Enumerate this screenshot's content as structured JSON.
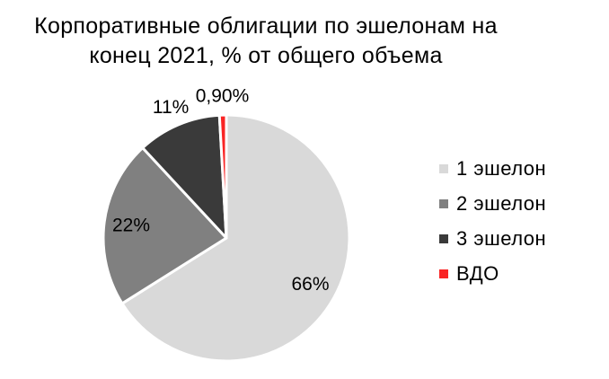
{
  "chart": {
    "title_lines": [
      "Корпоративные облигации по эшелонам на",
      "конец 2021, % от общего объема"
    ]
  },
  "chart_data": {
    "type": "pie",
    "title": "Корпоративные облигации по эшелонам на конец 2021, % от общего объема",
    "legend_position": "right",
    "direction": "clockwise",
    "start_angle_deg": 0,
    "slice_border_color": "#ffffff",
    "label_text_color": "#000000",
    "slices": [
      {
        "name": "1 эшелон",
        "value": 66,
        "label": "66%",
        "color": "#d9d9d9",
        "label_placement": "inside"
      },
      {
        "name": "2 эшелон",
        "value": 22,
        "label": "22%",
        "color": "#808080",
        "label_placement": "inside"
      },
      {
        "name": "3 эшелон",
        "value": 11,
        "label": "11%",
        "color": "#3a3a3a",
        "label_placement": "outside"
      },
      {
        "name": "ВДО",
        "value": 0.9,
        "label": "0,90%",
        "color": "#f92525",
        "label_placement": "outside"
      }
    ]
  }
}
